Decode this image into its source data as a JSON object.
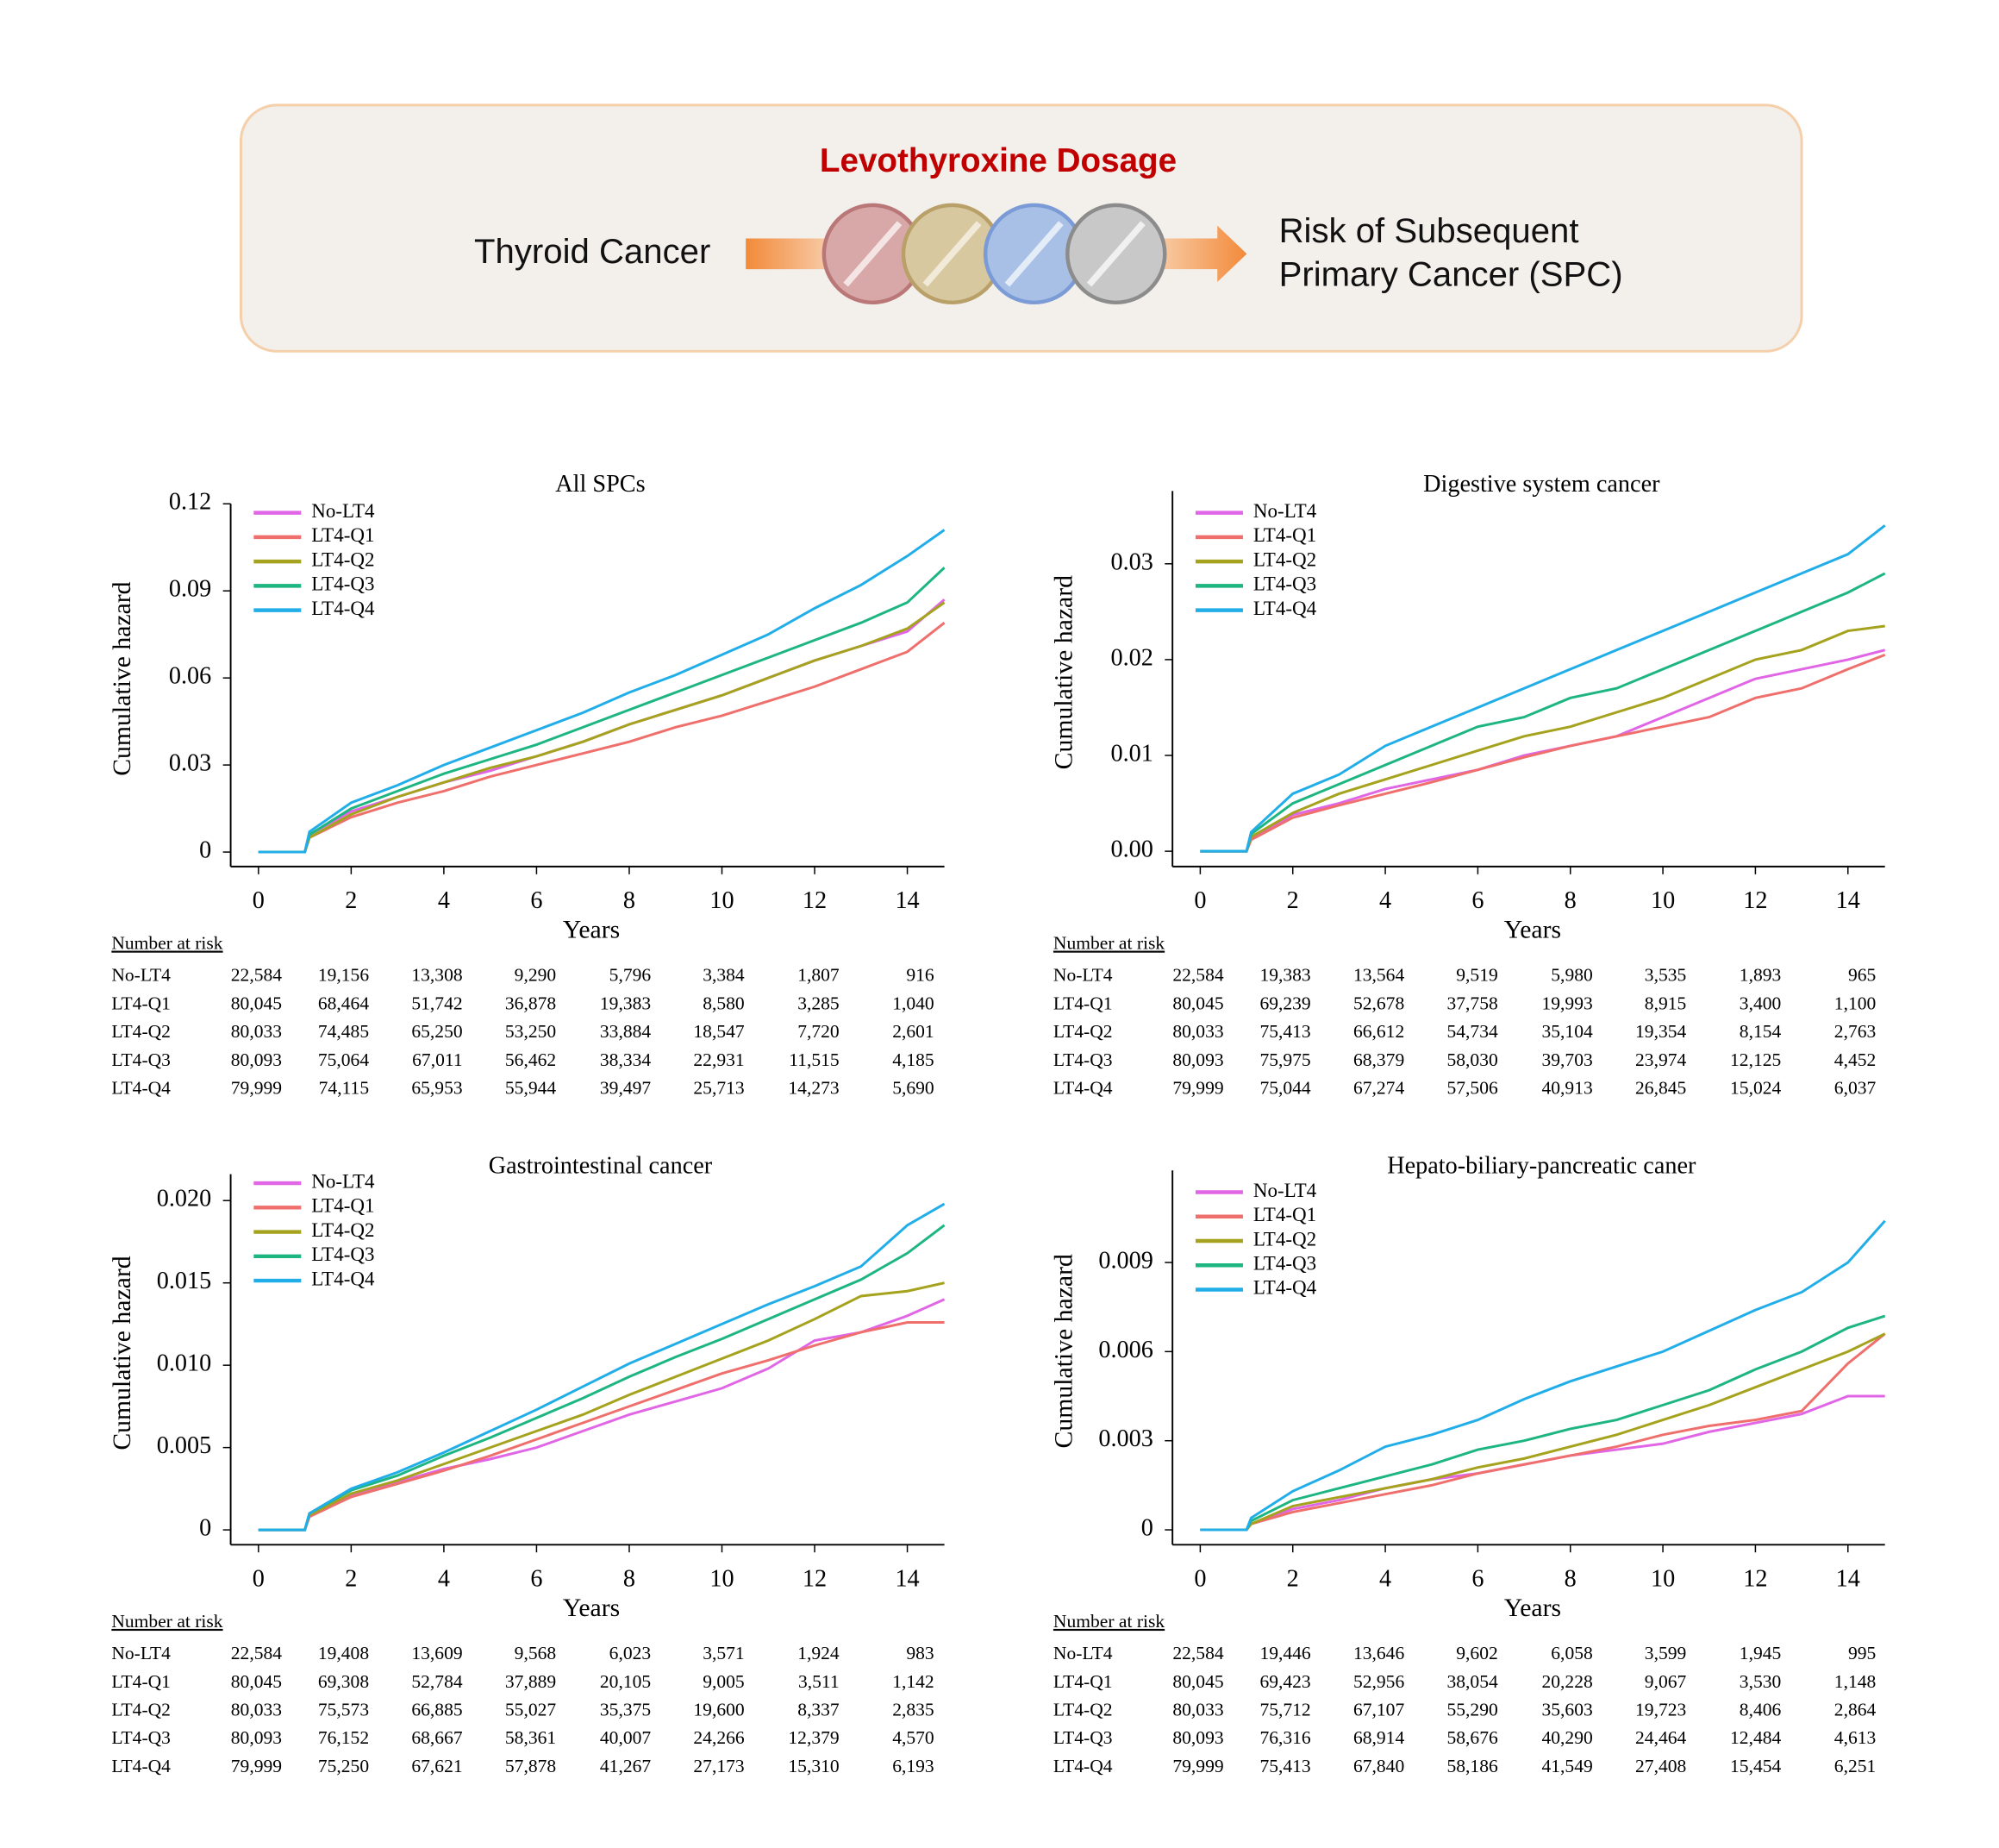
{
  "header": {
    "title": "Levothyroxine Dosage",
    "source": "Thyroid Cancer",
    "outcome": [
      "Risk of Subsequent",
      "Primary Cancer (SPC)"
    ]
  },
  "chart_data": [
    {
      "type": "line",
      "title": "All SPCs",
      "xlabel": "Years",
      "ylabel": "Cumulative hazard",
      "xlim": [
        -0.6,
        14.8
      ],
      "ylim": [
        -0.005,
        0.12
      ],
      "xticks": [
        0,
        2,
        4,
        6,
        8,
        10,
        12,
        14
      ],
      "yticks": [
        0,
        0.03,
        0.06,
        0.09,
        0.12
      ],
      "x": [
        0,
        1,
        1.1,
        2,
        3,
        4,
        5,
        6,
        7,
        8,
        9,
        10,
        11,
        12,
        13,
        14,
        14.8
      ],
      "series": [
        {
          "name": "No-LT4",
          "color": "#e066e6",
          "values": [
            0,
            0,
            0.006,
            0.014,
            0.019,
            0.024,
            0.028,
            0.033,
            0.038,
            0.044,
            0.049,
            0.054,
            0.06,
            0.066,
            0.071,
            0.076,
            0.087
          ]
        },
        {
          "name": "LT4-Q1",
          "color": "#ef6f6c",
          "values": [
            0,
            0,
            0.005,
            0.012,
            0.017,
            0.021,
            0.026,
            0.03,
            0.034,
            0.038,
            0.043,
            0.047,
            0.052,
            0.057,
            0.063,
            0.069,
            0.079
          ]
        },
        {
          "name": "LT4-Q2",
          "color": "#a5a21d",
          "values": [
            0,
            0,
            0.005,
            0.013,
            0.019,
            0.024,
            0.029,
            0.033,
            0.038,
            0.044,
            0.049,
            0.054,
            0.06,
            0.066,
            0.071,
            0.077,
            0.086
          ]
        },
        {
          "name": "LT4-Q3",
          "color": "#1db580",
          "values": [
            0,
            0,
            0.006,
            0.015,
            0.021,
            0.027,
            0.032,
            0.037,
            0.043,
            0.049,
            0.055,
            0.061,
            0.067,
            0.073,
            0.079,
            0.086,
            0.098
          ]
        },
        {
          "name": "LT4-Q4",
          "color": "#21aee8",
          "values": [
            0,
            0,
            0.007,
            0.017,
            0.023,
            0.03,
            0.036,
            0.042,
            0.048,
            0.055,
            0.061,
            0.068,
            0.075,
            0.084,
            0.092,
            0.102,
            0.111
          ]
        }
      ],
      "risk_table": {
        "title": "Number at risk",
        "rows": [
          {
            "name": "No-LT4",
            "values": [
              "22,584",
              "19,156",
              "13,308",
              "9,290",
              "5,796",
              "3,384",
              "1,807",
              "916"
            ]
          },
          {
            "name": "LT4-Q1",
            "values": [
              "80,045",
              "68,464",
              "51,742",
              "36,878",
              "19,383",
              "8,580",
              "3,285",
              "1,040"
            ]
          },
          {
            "name": "LT4-Q2",
            "values": [
              "80,033",
              "74,485",
              "65,250",
              "53,250",
              "33,884",
              "18,547",
              "7,720",
              "2,601"
            ]
          },
          {
            "name": "LT4-Q3",
            "values": [
              "80,093",
              "75,064",
              "67,011",
              "56,462",
              "38,334",
              "22,931",
              "11,515",
              "4,185"
            ]
          },
          {
            "name": "LT4-Q4",
            "values": [
              "79,999",
              "74,115",
              "65,953",
              "55,944",
              "39,497",
              "25,713",
              "14,273",
              "5,690"
            ]
          }
        ]
      }
    },
    {
      "type": "line",
      "title": "Digestive system cancer",
      "xlabel": "Years",
      "ylabel": "Cumulative hazard",
      "xlim": [
        -0.6,
        14.8
      ],
      "ylim": [
        -0.0016,
        0.0376
      ],
      "xticks": [
        0,
        2,
        4,
        6,
        8,
        10,
        12,
        14
      ],
      "yticks": [
        {
          "value": 0,
          "label": "0.00"
        },
        0.01,
        0.02,
        0.03
      ],
      "x": [
        0,
        1,
        1.1,
        2,
        3,
        4,
        5,
        6,
        7,
        8,
        9,
        10,
        11,
        12,
        13,
        14,
        14.8
      ],
      "series": [
        {
          "name": "No-LT4",
          "color": "#e066e6",
          "values": [
            0,
            0,
            0.0013,
            0.0038,
            0.005,
            0.0065,
            0.0075,
            0.0085,
            0.01,
            0.011,
            0.012,
            0.014,
            0.016,
            0.018,
            0.019,
            0.02,
            0.021
          ]
        },
        {
          "name": "LT4-Q1",
          "color": "#ef6f6c",
          "values": [
            0,
            0,
            0.0012,
            0.0035,
            0.0048,
            0.006,
            0.0072,
            0.0085,
            0.0098,
            0.011,
            0.012,
            0.013,
            0.014,
            0.016,
            0.017,
            0.019,
            0.0205
          ]
        },
        {
          "name": "LT4-Q2",
          "color": "#a5a21d",
          "values": [
            0,
            0,
            0.0015,
            0.004,
            0.006,
            0.0075,
            0.009,
            0.0105,
            0.012,
            0.013,
            0.0145,
            0.016,
            0.018,
            0.02,
            0.021,
            0.023,
            0.0235
          ]
        },
        {
          "name": "LT4-Q3",
          "color": "#1db580",
          "values": [
            0,
            0,
            0.0018,
            0.005,
            0.007,
            0.009,
            0.011,
            0.013,
            0.014,
            0.016,
            0.017,
            0.019,
            0.021,
            0.023,
            0.025,
            0.027,
            0.029
          ]
        },
        {
          "name": "LT4-Q4",
          "color": "#21aee8",
          "values": [
            0,
            0,
            0.002,
            0.006,
            0.008,
            0.011,
            0.013,
            0.015,
            0.017,
            0.019,
            0.021,
            0.023,
            0.025,
            0.027,
            0.029,
            0.031,
            0.034
          ]
        }
      ],
      "risk_table": {
        "title": "Number at risk",
        "rows": [
          {
            "name": "No-LT4",
            "values": [
              "22,584",
              "19,383",
              "13,564",
              "9,519",
              "5,980",
              "3,535",
              "1,893",
              "965"
            ]
          },
          {
            "name": "LT4-Q1",
            "values": [
              "80,045",
              "69,239",
              "52,678",
              "37,758",
              "19,993",
              "8,915",
              "3,400",
              "1,100"
            ]
          },
          {
            "name": "LT4-Q2",
            "values": [
              "80,033",
              "75,413",
              "66,612",
              "54,734",
              "35,104",
              "19,354",
              "8,154",
              "2,763"
            ]
          },
          {
            "name": "LT4-Q3",
            "values": [
              "80,093",
              "75,975",
              "68,379",
              "58,030",
              "39,703",
              "23,974",
              "12,125",
              "4,452"
            ]
          },
          {
            "name": "LT4-Q4",
            "values": [
              "79,999",
              "75,044",
              "67,274",
              "57,506",
              "40,913",
              "26,845",
              "15,024",
              "6,037"
            ]
          }
        ]
      }
    },
    {
      "type": "line",
      "title": "Gastrointestinal cancer",
      "xlabel": "Years",
      "ylabel": "Cumulative hazard",
      "xlim": [
        -0.6,
        14.8
      ],
      "ylim": [
        -0.0009,
        0.0216
      ],
      "xticks": [
        0,
        2,
        4,
        6,
        8,
        10,
        12,
        14
      ],
      "yticks": [
        0,
        0.005,
        {
          "value": 0.01,
          "label": "0.010"
        },
        0.015,
        {
          "value": 0.02,
          "label": "0.020"
        }
      ],
      "x": [
        0,
        1,
        1.1,
        2,
        3,
        4,
        5,
        6,
        7,
        8,
        9,
        10,
        11,
        12,
        13,
        14,
        14.8
      ],
      "series": [
        {
          "name": "No-LT4",
          "color": "#e066e6",
          "values": [
            0,
            0,
            0.0008,
            0.0021,
            0.0029,
            0.0037,
            0.0043,
            0.005,
            0.006,
            0.007,
            0.0078,
            0.0086,
            0.0098,
            0.0115,
            0.012,
            0.013,
            0.014
          ]
        },
        {
          "name": "LT4-Q1",
          "color": "#ef6f6c",
          "values": [
            0,
            0,
            0.0008,
            0.002,
            0.0028,
            0.0036,
            0.0045,
            0.0055,
            0.0065,
            0.0075,
            0.0085,
            0.0095,
            0.0103,
            0.0112,
            0.012,
            0.0126,
            0.0126
          ]
        },
        {
          "name": "LT4-Q2",
          "color": "#a5a21d",
          "values": [
            0,
            0,
            0.0009,
            0.0022,
            0.003,
            0.004,
            0.005,
            0.006,
            0.007,
            0.0082,
            0.0093,
            0.0104,
            0.0115,
            0.0128,
            0.0142,
            0.0145,
            0.015
          ]
        },
        {
          "name": "LT4-Q3",
          "color": "#1db580",
          "values": [
            0,
            0,
            0.001,
            0.0024,
            0.0033,
            0.0045,
            0.0056,
            0.0068,
            0.008,
            0.0093,
            0.0105,
            0.0116,
            0.0128,
            0.014,
            0.0152,
            0.0168,
            0.0185
          ]
        },
        {
          "name": "LT4-Q4",
          "color": "#21aee8",
          "values": [
            0,
            0,
            0.001,
            0.0025,
            0.0035,
            0.0047,
            0.006,
            0.0073,
            0.0087,
            0.0101,
            0.0113,
            0.0125,
            0.0137,
            0.0148,
            0.016,
            0.0185,
            0.0198
          ]
        }
      ],
      "risk_table": {
        "title": "Number at risk",
        "rows": [
          {
            "name": "No-LT4",
            "values": [
              "22,584",
              "19,408",
              "13,609",
              "9,568",
              "6,023",
              "3,571",
              "1,924",
              "983"
            ]
          },
          {
            "name": "LT4-Q1",
            "values": [
              "80,045",
              "69,308",
              "52,784",
              "37,889",
              "20,105",
              "9,005",
              "3,511",
              "1,142"
            ]
          },
          {
            "name": "LT4-Q2",
            "values": [
              "80,033",
              "75,573",
              "66,885",
              "55,027",
              "35,375",
              "19,600",
              "8,337",
              "2,835"
            ]
          },
          {
            "name": "LT4-Q3",
            "values": [
              "80,093",
              "76,152",
              "68,667",
              "58,361",
              "40,007",
              "24,266",
              "12,379",
              "4,570"
            ]
          },
          {
            "name": "LT4-Q4",
            "values": [
              "79,999",
              "75,250",
              "67,621",
              "57,878",
              "41,267",
              "27,173",
              "15,310",
              "6,193"
            ]
          }
        ]
      }
    },
    {
      "type": "line",
      "title": "Hepato-biliary-pancreatic caner",
      "xlabel": "Years",
      "ylabel": "Cumulative hazard",
      "xlim": [
        -0.6,
        14.8
      ],
      "ylim": [
        -0.0005,
        0.0121
      ],
      "xticks": [
        0,
        2,
        4,
        6,
        8,
        10,
        12,
        14
      ],
      "yticks": [
        0,
        0.003,
        0.006,
        0.009
      ],
      "x": [
        0,
        1,
        1.1,
        2,
        3,
        4,
        5,
        6,
        7,
        8,
        9,
        10,
        11,
        12,
        13,
        14,
        14.8
      ],
      "series": [
        {
          "name": "No-LT4",
          "color": "#e066e6",
          "values": [
            0,
            0,
            0.0002,
            0.0007,
            0.001,
            0.0014,
            0.0017,
            0.0019,
            0.0022,
            0.0025,
            0.0027,
            0.0029,
            0.0033,
            0.0036,
            0.0039,
            0.0045,
            0.0045
          ]
        },
        {
          "name": "LT4-Q1",
          "color": "#ef6f6c",
          "values": [
            0,
            0,
            0.0002,
            0.0006,
            0.0009,
            0.0012,
            0.0015,
            0.0019,
            0.0022,
            0.0025,
            0.0028,
            0.0032,
            0.0035,
            0.0037,
            0.004,
            0.0056,
            0.0066
          ]
        },
        {
          "name": "LT4-Q2",
          "color": "#a5a21d",
          "values": [
            0,
            0,
            0.0002,
            0.0008,
            0.0011,
            0.0014,
            0.0017,
            0.0021,
            0.0024,
            0.0028,
            0.0032,
            0.0037,
            0.0042,
            0.0048,
            0.0054,
            0.006,
            0.0066
          ]
        },
        {
          "name": "LT4-Q3",
          "color": "#1db580",
          "values": [
            0,
            0,
            0.0003,
            0.001,
            0.0014,
            0.0018,
            0.0022,
            0.0027,
            0.003,
            0.0034,
            0.0037,
            0.0042,
            0.0047,
            0.0054,
            0.006,
            0.0068,
            0.0072
          ]
        },
        {
          "name": "LT4-Q4",
          "color": "#21aee8",
          "values": [
            0,
            0,
            0.0004,
            0.0013,
            0.002,
            0.0028,
            0.0032,
            0.0037,
            0.0044,
            0.005,
            0.0055,
            0.006,
            0.0067,
            0.0074,
            0.008,
            0.009,
            0.0104
          ]
        }
      ],
      "risk_table": {
        "title": "Number at risk",
        "rows": [
          {
            "name": "No-LT4",
            "values": [
              "22,584",
              "19,446",
              "13,646",
              "9,602",
              "6,058",
              "3,599",
              "1,945",
              "995"
            ]
          },
          {
            "name": "LT4-Q1",
            "values": [
              "80,045",
              "69,423",
              "52,956",
              "38,054",
              "20,228",
              "9,067",
              "3,530",
              "1,148"
            ]
          },
          {
            "name": "LT4-Q2",
            "values": [
              "80,033",
              "75,712",
              "67,107",
              "55,290",
              "35,603",
              "19,723",
              "8,406",
              "2,864"
            ]
          },
          {
            "name": "LT4-Q3",
            "values": [
              "80,093",
              "76,316",
              "68,914",
              "58,676",
              "40,290",
              "24,464",
              "12,484",
              "4,613"
            ]
          },
          {
            "name": "LT4-Q4",
            "values": [
              "79,999",
              "75,413",
              "67,840",
              "58,186",
              "41,549",
              "27,408",
              "15,454",
              "6,251"
            ]
          }
        ]
      }
    }
  ]
}
